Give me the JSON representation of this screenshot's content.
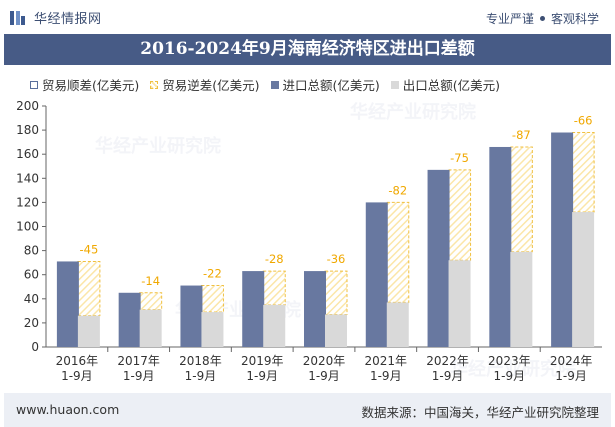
{
  "header": {
    "brand": "华经情报网",
    "tagline_left": "专业严谨",
    "tagline_right": "客观科学"
  },
  "chart_data": {
    "type": "bar",
    "title": "2016-2024年9月海南经济特区进出口差额",
    "categories": [
      "2016年\n1-9月",
      "2017年\n1-9月",
      "2018年\n1-9月",
      "2019年\n1-9月",
      "2020年\n1-9月",
      "2021年\n1-9月",
      "2022年\n1-9月",
      "2023年\n1-9月",
      "2024年\n1-9月"
    ],
    "series": [
      {
        "name": "贸易顺差(亿美元)",
        "values": [
          0,
          0,
          0,
          0,
          0,
          0,
          0,
          0,
          0
        ]
      },
      {
        "name": "贸易逆差(亿美元)",
        "values": [
          -45,
          -14,
          -22,
          -28,
          -36,
          -82,
          -75,
          -87,
          -66
        ]
      },
      {
        "name": "进口总额(亿美元)",
        "values": [
          71,
          45,
          51,
          63,
          63,
          120,
          147,
          166,
          178
        ]
      },
      {
        "name": "出口总额(亿美元)",
        "values": [
          26,
          31,
          29,
          35,
          27,
          37,
          72,
          79,
          112
        ]
      }
    ],
    "ylim": [
      0,
      200
    ],
    "yticks": [
      0,
      20,
      40,
      60,
      80,
      100,
      120,
      140,
      160,
      180,
      200
    ],
    "xlabel": "",
    "ylabel": "",
    "legend_position": "top",
    "grid": false,
    "colors": {
      "import": "#6878a0",
      "export": "#d9d9d9",
      "deficit_fill": "#fbe6a9",
      "deficit_border": "#f0c040",
      "label": "#f0a800",
      "title_bg": "#475b86"
    }
  },
  "footer": {
    "site": "www.huaon.com",
    "source": "数据来源：中国海关，华经产业研究院整理"
  },
  "watermark": "华经产业研究院"
}
